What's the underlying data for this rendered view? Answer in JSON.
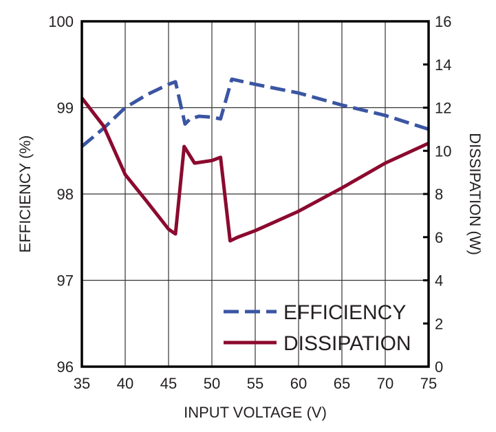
{
  "chart_data": {
    "type": "line",
    "xlabel": "INPUT VOLTAGE (V)",
    "ylabel": "EFFICIENCY (%)",
    "y2label": "DISSIPATION (W)",
    "xlim": [
      35,
      75
    ],
    "ylim": [
      96,
      100
    ],
    "y2lim": [
      0,
      16
    ],
    "grid": true,
    "legend_position": "bottom-right",
    "xticks": [
      "35",
      "40",
      "45",
      "50",
      "55",
      "60",
      "65",
      "70",
      "75"
    ],
    "yticks": [
      "96",
      "97",
      "98",
      "99",
      "100"
    ],
    "y2ticks": [
      "0",
      "2",
      "4",
      "6",
      "8",
      "10",
      "12",
      "14",
      "16"
    ],
    "series": [
      {
        "name": "EFFICIENCY",
        "axis": "left",
        "color": "#3b55a3",
        "style": "dashed",
        "x": [
          35,
          37.5,
          40,
          42.5,
          45,
          45.8,
          46.9,
          47.5,
          48.5,
          50,
          51,
          52.3,
          55,
          60,
          65,
          70,
          75
        ],
        "y": [
          98.55,
          98.76,
          99.0,
          99.15,
          99.27,
          99.3,
          98.81,
          98.87,
          98.9,
          98.89,
          98.87,
          99.33,
          99.27,
          99.17,
          99.03,
          98.91,
          98.75
        ]
      },
      {
        "name": "DISSIPATION",
        "axis": "right",
        "color": "#8b0a2f",
        "style": "solid",
        "x": [
          35,
          37.5,
          40,
          42.5,
          45,
          45.8,
          46.8,
          48,
          50,
          51,
          52.1,
          53,
          55,
          60,
          65,
          70,
          75
        ],
        "y": [
          12.45,
          11.15,
          8.9,
          7.65,
          6.37,
          6.15,
          10.2,
          9.43,
          9.55,
          9.7,
          5.83,
          6.0,
          6.3,
          7.2,
          8.28,
          9.43,
          10.35
        ]
      }
    ]
  }
}
